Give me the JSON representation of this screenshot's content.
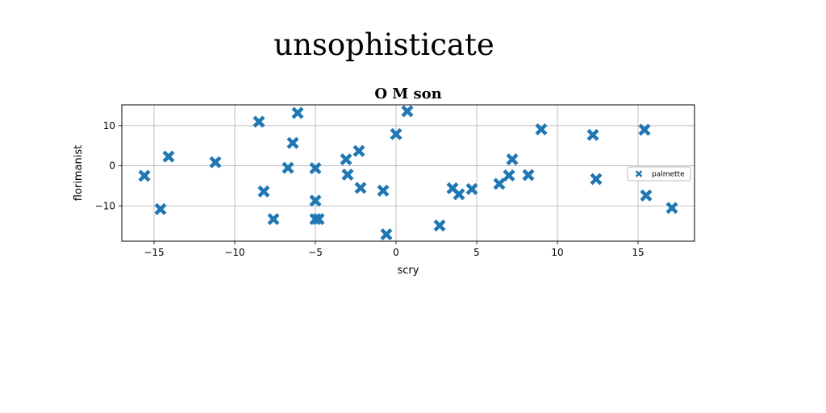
{
  "page": {
    "title": "unsophisticate"
  },
  "chart_data": {
    "type": "scatter",
    "title": "O M son",
    "xlabel": "scry",
    "ylabel": "florimanist",
    "xlim": [
      -17,
      18.5
    ],
    "ylim": [
      -18.8,
      15.2
    ],
    "xticks": [
      -15,
      -10,
      -5,
      0,
      5,
      10,
      15
    ],
    "yticks": [
      -10,
      0,
      10
    ],
    "grid": true,
    "legend_position": "center-right",
    "series": [
      {
        "name": "palmette",
        "color": "#1f77b4",
        "marker": "X",
        "x": [
          -15.6,
          -14.1,
          -14.6,
          -11.2,
          -8.5,
          -8.2,
          -7.6,
          -6.7,
          -6.4,
          -6.1,
          -5.0,
          -5.0,
          -5.0,
          -4.8,
          -3.1,
          -3.0,
          -2.3,
          -2.2,
          -0.8,
          -0.6,
          0.0,
          0.7,
          2.7,
          3.5,
          3.9,
          4.7,
          6.4,
          7.0,
          7.2,
          8.2,
          9.0,
          12.2,
          12.4,
          15.4,
          15.5,
          17.1
        ],
        "y": [
          -2.5,
          2.3,
          -10.8,
          0.9,
          11.0,
          -6.4,
          -13.3,
          -0.5,
          5.7,
          13.2,
          -0.6,
          -8.7,
          -13.3,
          -13.3,
          1.6,
          -2.2,
          3.7,
          -5.5,
          -6.2,
          -17.1,
          7.9,
          13.6,
          -14.9,
          -5.6,
          -7.1,
          -5.8,
          -4.5,
          -2.4,
          1.6,
          -2.3,
          9.1,
          7.7,
          -3.3,
          9.0,
          -7.4,
          -10.5
        ]
      }
    ]
  }
}
